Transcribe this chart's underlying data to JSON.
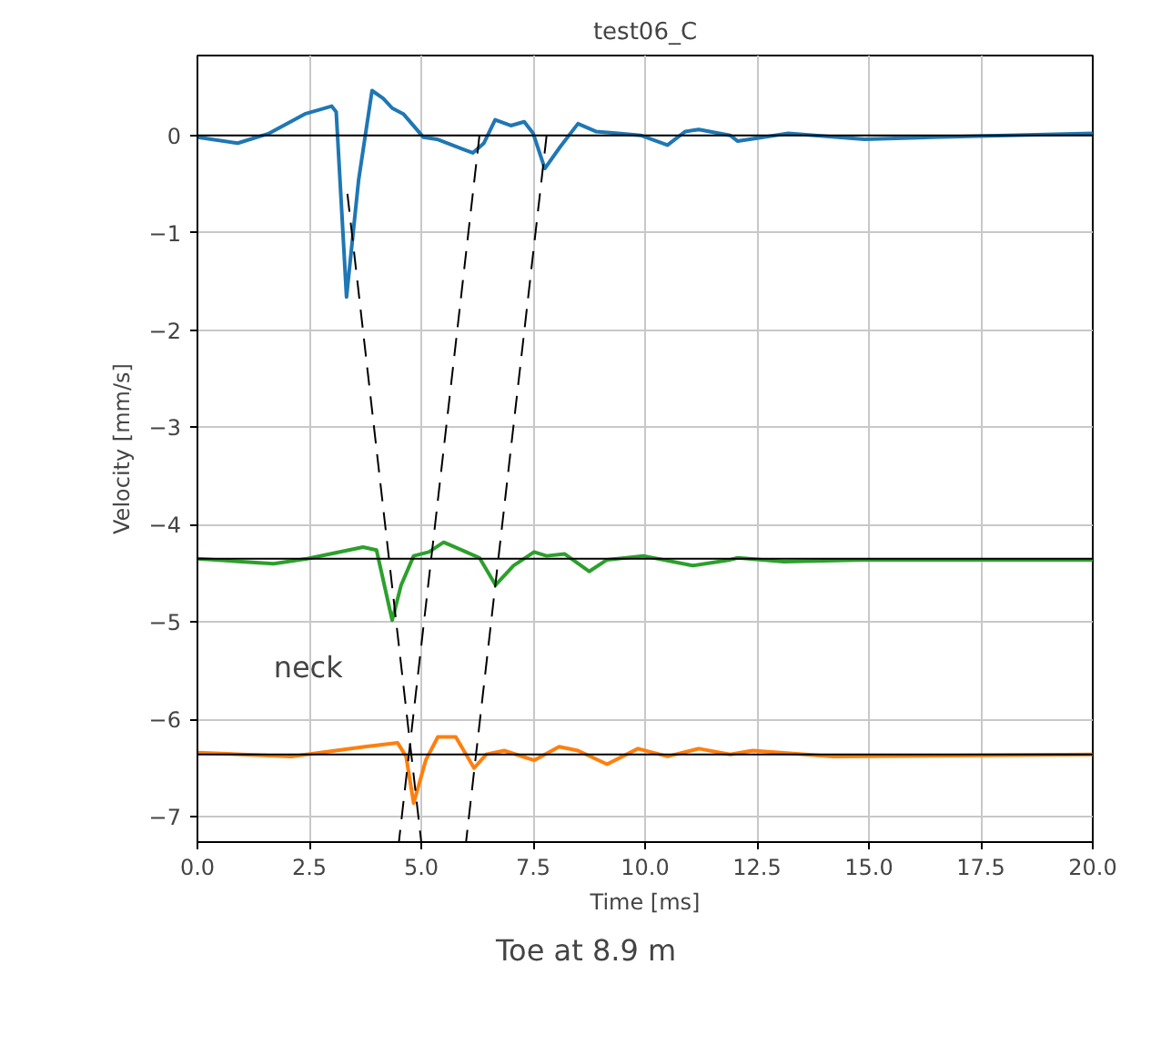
{
  "chart_data": {
    "type": "line",
    "title": "test06_C",
    "xlabel": "Time [ms]",
    "ylabel": "Velocity [mm/s]",
    "annotations": [
      "neck",
      "Toe at 8.9 m"
    ],
    "xlim": [
      0,
      20
    ],
    "ylim": [
      -7.26,
      0.82
    ],
    "xticks": [
      {
        "value": 0,
        "label": "0.0"
      },
      {
        "value": 2.5,
        "label": "2.5"
      },
      {
        "value": 5,
        "label": "5.0"
      },
      {
        "value": 7.5,
        "label": "7.5"
      },
      {
        "value": 10,
        "label": "10.0"
      },
      {
        "value": 12.5,
        "label": "12.5"
      },
      {
        "value": 15,
        "label": "15.0"
      },
      {
        "value": 17.5,
        "label": "17.5"
      },
      {
        "value": 20,
        "label": "20.0"
      }
    ],
    "yticks": [
      {
        "value": 0,
        "label": "0"
      },
      {
        "value": -1,
        "label": "−1"
      },
      {
        "value": -2,
        "label": "−2"
      },
      {
        "value": -3,
        "label": "−3"
      },
      {
        "value": -4,
        "label": "−4"
      },
      {
        "value": -5,
        "label": "−5"
      },
      {
        "value": -6,
        "label": "−6"
      },
      {
        "value": -7,
        "label": "−7"
      }
    ],
    "grid": true,
    "line_style": "solid",
    "ref_lines": [
      {
        "axis": "y",
        "value": 0,
        "color": "#000000"
      },
      {
        "axis": "y",
        "value": -4.35,
        "color": "#000000"
      },
      {
        "axis": "y",
        "value": -6.36,
        "color": "#000000"
      }
    ],
    "series": [
      {
        "color": "#1f77b4",
        "x": [
          0,
          0.9,
          1.6,
          2.4,
          3.0,
          3.1,
          3.33,
          3.6,
          3.9,
          4.15,
          4.35,
          4.6,
          5.05,
          5.35,
          6.15,
          6.4,
          6.65,
          7.0,
          7.3,
          7.5,
          7.76,
          8.1,
          8.5,
          8.9,
          9.4,
          9.9,
          10.5,
          10.9,
          11.2,
          11.9,
          12.07,
          13.2,
          14.9,
          16.4,
          20
        ],
        "values": [
          -0.02,
          -0.08,
          0.02,
          0.22,
          0.3,
          0.24,
          -1.66,
          -0.46,
          0.46,
          0.38,
          0.28,
          0.22,
          -0.02,
          -0.04,
          -0.18,
          -0.08,
          0.16,
          0.1,
          0.14,
          0.02,
          -0.34,
          -0.12,
          0.12,
          0.04,
          0.02,
          0.0,
          -0.1,
          0.04,
          0.06,
          0.0,
          -0.06,
          0.02,
          -0.04,
          -0.02,
          0.02
        ]
      },
      {
        "color": "#2ca02c",
        "x": [
          0,
          1.7,
          2.45,
          3.7,
          4.0,
          4.35,
          4.55,
          4.83,
          5.17,
          5.5,
          5.9,
          6.3,
          6.66,
          7.06,
          7.52,
          7.8,
          8.2,
          8.75,
          9.15,
          9.96,
          11.06,
          11.9,
          12.07,
          13.1,
          14.9,
          20
        ],
        "values": [
          -4.35,
          -4.4,
          -4.35,
          -4.23,
          -4.26,
          -4.98,
          -4.62,
          -4.32,
          -4.28,
          -4.18,
          -4.26,
          -4.34,
          -4.62,
          -4.42,
          -4.28,
          -4.32,
          -4.3,
          -4.48,
          -4.36,
          -4.32,
          -4.42,
          -4.36,
          -4.34,
          -4.38,
          -4.36,
          -4.36
        ]
      },
      {
        "color": "#ff7f0e",
        "x": [
          0,
          2.1,
          3.74,
          4.47,
          4.66,
          4.83,
          5.1,
          5.37,
          5.77,
          6.18,
          6.45,
          6.85,
          7.52,
          8.08,
          8.5,
          9.15,
          9.84,
          10.5,
          11.2,
          11.9,
          12.4,
          14.2,
          20
        ],
        "values": [
          -6.34,
          -6.38,
          -6.28,
          -6.24,
          -6.38,
          -6.86,
          -6.42,
          -6.18,
          -6.18,
          -6.5,
          -6.36,
          -6.32,
          -6.42,
          -6.28,
          -6.32,
          -6.46,
          -6.3,
          -6.38,
          -6.3,
          -6.36,
          -6.32,
          -6.38,
          -6.36
        ]
      },
      {
        "color": "#000000",
        "line_style": "dashed",
        "x": [
          3.35,
          5.0
        ],
        "values": [
          -0.6,
          -7.26
        ]
      },
      {
        "color": "#000000",
        "line_style": "dashed",
        "x": [
          6.3,
          4.5
        ],
        "values": [
          0,
          -7.26
        ]
      },
      {
        "color": "#000000",
        "line_style": "dashed",
        "x": [
          7.8,
          6.0
        ],
        "values": [
          0,
          -7.26
        ]
      }
    ]
  }
}
